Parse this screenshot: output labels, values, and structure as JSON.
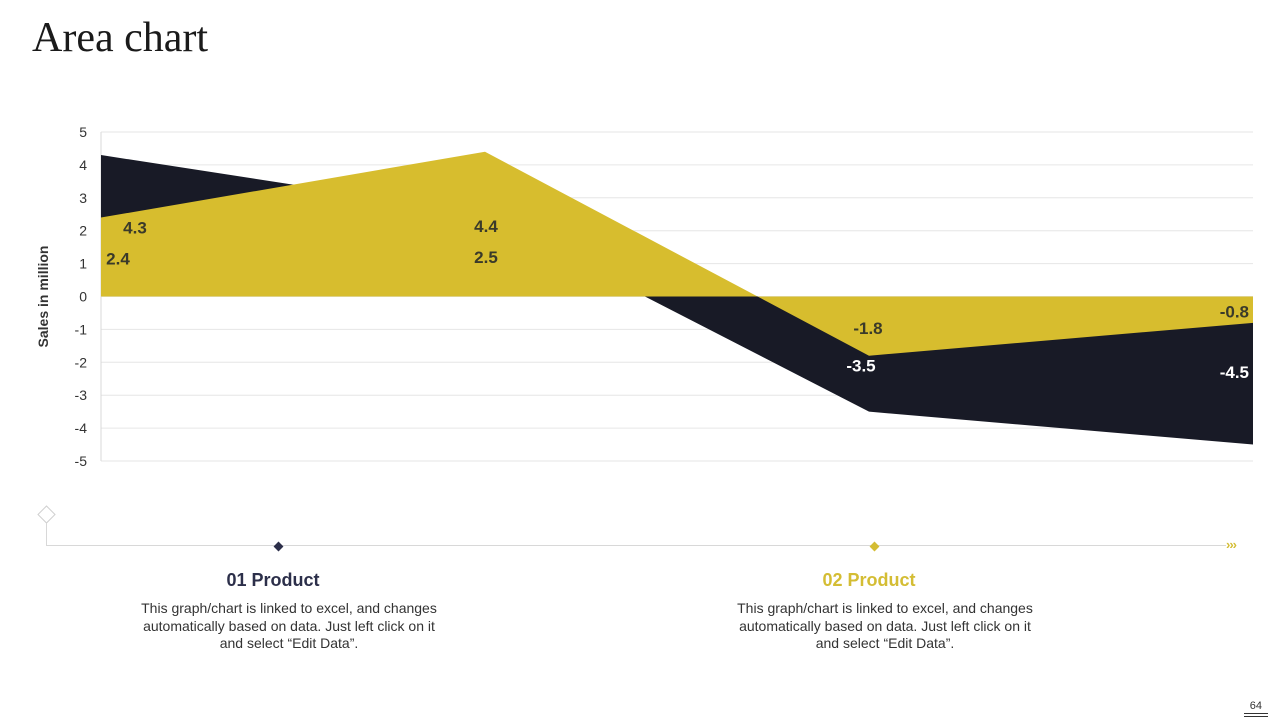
{
  "page": {
    "title": "Area chart",
    "page_number": "64"
  },
  "colors": {
    "dark": "#181a26",
    "gold": "#d7bd2e",
    "grid": "#e6e6e6",
    "axis_text": "#333333"
  },
  "chart_data": {
    "type": "area",
    "title": "",
    "xlabel": "",
    "ylabel": "Sales in million",
    "ylim": [
      -5,
      5
    ],
    "yticks": [
      "5",
      "4",
      "3",
      "2",
      "1",
      "0",
      "-1",
      "-2",
      "-3",
      "-4",
      "-5"
    ],
    "x": [
      "1",
      "2",
      "3",
      "4"
    ],
    "grid": true,
    "series": [
      {
        "values": [
          4.3,
          2.5,
          -3.5,
          -4.5
        ],
        "color": "#181a26",
        "labels": [
          "4.3",
          "2.5",
          "-3.5",
          "-4.5"
        ]
      },
      {
        "values": [
          2.4,
          4.4,
          -1.8,
          -0.8
        ],
        "color": "#d7bd2e",
        "labels": [
          "2.4",
          "4.4",
          "-1.8",
          "-0.8"
        ]
      }
    ]
  },
  "timeline": {
    "items": [
      {
        "number": "01",
        "label": "Product",
        "color": "#2c2f4a",
        "text": "This graph/chart is linked to excel, and changes automatically based on data. Just left click on it and select “Edit Data”."
      },
      {
        "number": "02",
        "label": "Product",
        "color": "#d4bd34",
        "text": "This graph/chart is linked to excel, and changes automatically based on data. Just left click on it and select “Edit Data”."
      }
    ]
  }
}
